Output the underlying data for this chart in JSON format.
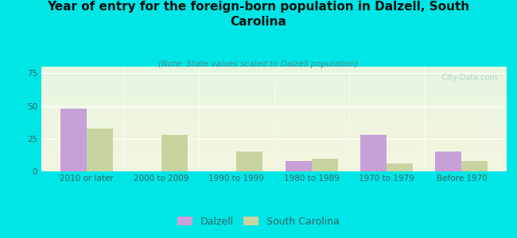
{
  "categories": [
    "2010 or later",
    "2000 to 2009",
    "1990 to 1999",
    "1980 to 1989",
    "1970 to 1979",
    "Before 1970"
  ],
  "dalzell_values": [
    48,
    0,
    0,
    8,
    28,
    15
  ],
  "sc_values": [
    33,
    28,
    15,
    10,
    6,
    8
  ],
  "dalzell_color": "#c8a0d8",
  "sc_color": "#c8d4a0",
  "background_color": "#00e5e5",
  "title": "Year of entry for the foreign-born population in Dalzell, South\nCarolina",
  "subtitle": "(Note: State values scaled to Dalzell population)",
  "ylabel_ticks": [
    0,
    25,
    50,
    75
  ],
  "ylim": [
    0,
    80
  ],
  "bar_width": 0.35,
  "title_fontsize": 11,
  "subtitle_fontsize": 7.5,
  "tick_fontsize": 7.5,
  "legend_fontsize": 9,
  "watermark": "  City-Data.com"
}
